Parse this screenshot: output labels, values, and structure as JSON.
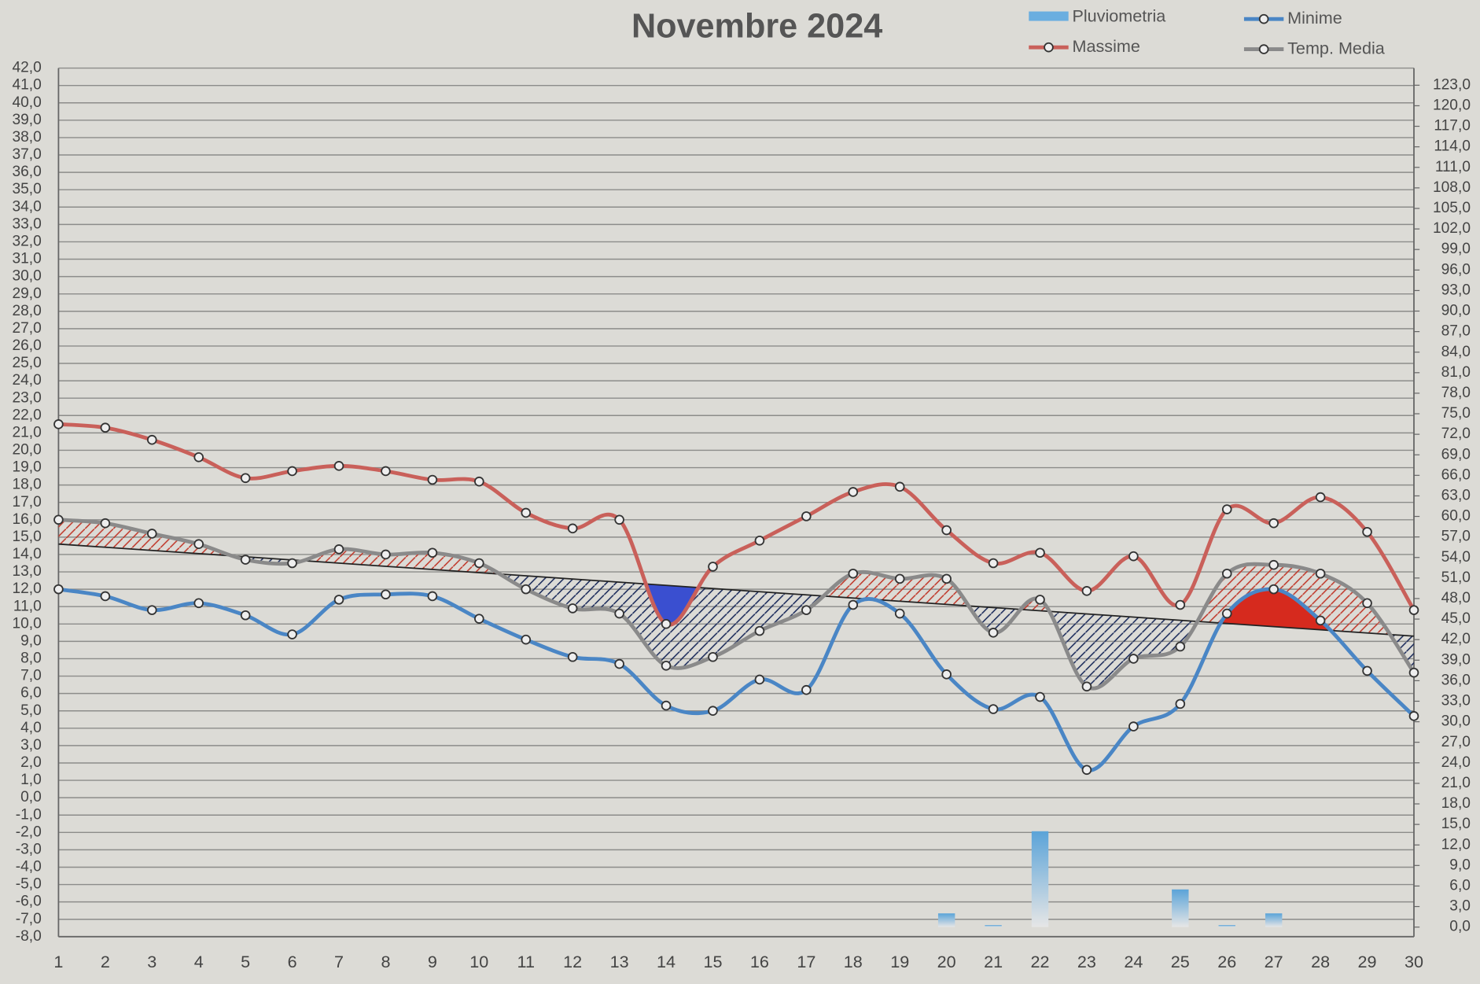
{
  "chart_data": {
    "type": "line",
    "title": "Novembre 2024",
    "categories": [
      "1",
      "2",
      "3",
      "4",
      "5",
      "6",
      "7",
      "8",
      "9",
      "10",
      "11",
      "12",
      "13",
      "14",
      "15",
      "16",
      "17",
      "18",
      "19",
      "20",
      "21",
      "22",
      "23",
      "24",
      "25",
      "26",
      "27",
      "28",
      "29",
      "30"
    ],
    "series": [
      {
        "name": "Pluviometria",
        "type": "bar",
        "axis": "y2",
        "color": "#6aaee0",
        "values": [
          0,
          0,
          0,
          0,
          0,
          0,
          0,
          0,
          0,
          0,
          0,
          0,
          0,
          0,
          0,
          0,
          0,
          0,
          0,
          2,
          0.3,
          14,
          0,
          0,
          5.5,
          0.3,
          2,
          0,
          0,
          0
        ]
      },
      {
        "name": "Minime",
        "type": "line",
        "color": "#4a86c5",
        "values": [
          12.0,
          11.6,
          10.8,
          11.2,
          10.5,
          9.4,
          11.4,
          11.7,
          11.6,
          10.3,
          9.1,
          8.1,
          7.7,
          5.3,
          5.0,
          6.8,
          6.2,
          11.1,
          10.6,
          7.1,
          5.1,
          5.8,
          1.6,
          4.1,
          5.4,
          10.6,
          12.0,
          10.2,
          7.3,
          4.7
        ]
      },
      {
        "name": "Massime",
        "type": "line",
        "color": "#c9605a",
        "values": [
          21.5,
          21.3,
          20.6,
          19.6,
          18.4,
          18.8,
          19.1,
          18.8,
          18.3,
          18.2,
          16.4,
          15.5,
          16.0,
          10.0,
          13.3,
          14.8,
          16.2,
          17.6,
          17.9,
          15.4,
          13.5,
          14.1,
          11.9,
          13.9,
          11.1,
          16.6,
          15.8,
          17.3,
          15.3,
          10.8
        ]
      },
      {
        "name": "Temp. Media",
        "type": "line",
        "color": "#8a8a8a",
        "values": [
          16.0,
          15.8,
          15.2,
          14.6,
          13.7,
          13.5,
          14.3,
          14.0,
          14.1,
          13.5,
          12.0,
          10.9,
          10.6,
          7.6,
          8.1,
          9.6,
          10.8,
          12.9,
          12.6,
          12.6,
          9.5,
          11.4,
          6.4,
          8.0,
          8.7,
          12.9,
          13.4,
          12.9,
          11.2,
          7.2
        ]
      }
    ],
    "trend": [
      14.6,
      9.3
    ],
    "ylim": [
      -8,
      42
    ],
    "yticks": [
      {
        "value": -8,
        "label": "-8,0"
      },
      {
        "value": -7,
        "label": "-7,0"
      },
      {
        "value": -6,
        "label": "-6,0"
      },
      {
        "value": -5,
        "label": "-5,0"
      },
      {
        "value": -4,
        "label": "-4,0"
      },
      {
        "value": -3,
        "label": "-3,0"
      },
      {
        "value": -2,
        "label": "-2,0"
      },
      {
        "value": -1,
        "label": "-1,0"
      },
      {
        "value": 0,
        "label": "0,0"
      },
      {
        "value": 1,
        "label": "1,0"
      },
      {
        "value": 2,
        "label": "2,0"
      },
      {
        "value": 3,
        "label": "3,0"
      },
      {
        "value": 4,
        "label": "4,0"
      },
      {
        "value": 5,
        "label": "5,0"
      },
      {
        "value": 6,
        "label": "6,0"
      },
      {
        "value": 7,
        "label": "7,0"
      },
      {
        "value": 8,
        "label": "8,0"
      },
      {
        "value": 9,
        "label": "9,0"
      },
      {
        "value": 10,
        "label": "10,0"
      },
      {
        "value": 11,
        "label": "11,0"
      },
      {
        "value": 12,
        "label": "12,0"
      },
      {
        "value": 13,
        "label": "13,0"
      },
      {
        "value": 14,
        "label": "14,0"
      },
      {
        "value": 15,
        "label": "15,0"
      },
      {
        "value": 16,
        "label": "16,0"
      },
      {
        "value": 17,
        "label": "17,0"
      },
      {
        "value": 18,
        "label": "18,0"
      },
      {
        "value": 19,
        "label": "19,0"
      },
      {
        "value": 20,
        "label": "20,0"
      },
      {
        "value": 21,
        "label": "21,0"
      },
      {
        "value": 22,
        "label": "22,0"
      },
      {
        "value": 23,
        "label": "23,0"
      },
      {
        "value": 24,
        "label": "24,0"
      },
      {
        "value": 25,
        "label": "25,0"
      },
      {
        "value": 26,
        "label": "26,0"
      },
      {
        "value": 27,
        "label": "27,0"
      },
      {
        "value": 28,
        "label": "28,0"
      },
      {
        "value": 29,
        "label": "29,0"
      },
      {
        "value": 30,
        "label": "30,0"
      },
      {
        "value": 31,
        "label": "31,0"
      },
      {
        "value": 32,
        "label": "32,0"
      },
      {
        "value": 33,
        "label": "33,0"
      },
      {
        "value": 34,
        "label": "34,0"
      },
      {
        "value": 35,
        "label": "35,0"
      },
      {
        "value": 36,
        "label": "36,0"
      },
      {
        "value": 37,
        "label": "37,0"
      },
      {
        "value": 38,
        "label": "38,0"
      },
      {
        "value": 39,
        "label": "39,0"
      },
      {
        "value": 40,
        "label": "40,0"
      },
      {
        "value": 41,
        "label": "41,0"
      },
      {
        "value": 42,
        "label": "42,0"
      }
    ],
    "y2lim": [
      -1.4,
      125.5
    ],
    "y2ticks": [
      {
        "value": 0,
        "label": "0,0"
      },
      {
        "value": 3,
        "label": "3,0"
      },
      {
        "value": 6,
        "label": "6,0"
      },
      {
        "value": 9,
        "label": "9,0"
      },
      {
        "value": 12,
        "label": "12,0"
      },
      {
        "value": 15,
        "label": "15,0"
      },
      {
        "value": 18,
        "label": "18,0"
      },
      {
        "value": 21,
        "label": "21,0"
      },
      {
        "value": 24,
        "label": "24,0"
      },
      {
        "value": 27,
        "label": "27,0"
      },
      {
        "value": 30,
        "label": "30,0"
      },
      {
        "value": 33,
        "label": "33,0"
      },
      {
        "value": 36,
        "label": "36,0"
      },
      {
        "value": 39,
        "label": "39,0"
      },
      {
        "value": 42,
        "label": "42,0"
      },
      {
        "value": 45,
        "label": "45,0"
      },
      {
        "value": 48,
        "label": "48,0"
      },
      {
        "value": 51,
        "label": "51,0"
      },
      {
        "value": 54,
        "label": "54,0"
      },
      {
        "value": 57,
        "label": "57,0"
      },
      {
        "value": 60,
        "label": "60,0"
      },
      {
        "value": 63,
        "label": "63,0"
      },
      {
        "value": 66,
        "label": "66,0"
      },
      {
        "value": 69,
        "label": "69,0"
      },
      {
        "value": 72,
        "label": "72,0"
      },
      {
        "value": 75,
        "label": "75,0"
      },
      {
        "value": 78,
        "label": "78,0"
      },
      {
        "value": 81,
        "label": "81,0"
      },
      {
        "value": 84,
        "label": "84,0"
      },
      {
        "value": 87,
        "label": "87,0"
      },
      {
        "value": 90,
        "label": "90,0"
      },
      {
        "value": 93,
        "label": "93,0"
      },
      {
        "value": 96,
        "label": "96,0"
      },
      {
        "value": 99,
        "label": "99,0"
      },
      {
        "value": 102,
        "label": "102,0"
      },
      {
        "value": 105,
        "label": "105,0"
      },
      {
        "value": 108,
        "label": "108,0"
      },
      {
        "value": 111,
        "label": "111,0"
      },
      {
        "value": 114,
        "label": "114,0"
      },
      {
        "value": 117,
        "label": "117,0"
      },
      {
        "value": 120,
        "label": "120,0"
      },
      {
        "value": 123,
        "label": "123,0"
      }
    ],
    "grid": true
  }
}
